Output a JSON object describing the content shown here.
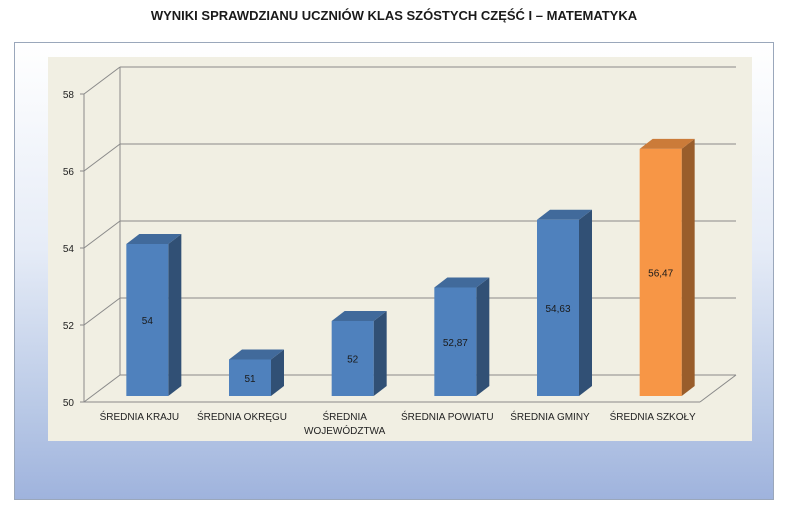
{
  "title": "WYNIKI SPRAWDZIANU UCZNIÓW KLAS SZÓSTYCH CZĘŚĆ I – MATEMATYKA",
  "colors": {
    "bar": "#4f81bd",
    "highlight": "#f79646"
  },
  "chart_data": {
    "type": "bar",
    "title": "WYNIKI SPRAWDZIANU UCZNIÓW KLAS SZÓSTYCH CZĘŚĆ I – MATEMATYKA",
    "categories": [
      [
        "ŚREDNIA KRAJU"
      ],
      [
        "ŚREDNIA OKRĘGU"
      ],
      [
        "ŚREDNIA",
        "WOJEWÓDZTWA"
      ],
      [
        "ŚREDNIA POWIATU"
      ],
      [
        "ŚREDNIA GMINY"
      ],
      [
        "ŚREDNIA  SZKOŁY"
      ]
    ],
    "values": [
      54,
      51,
      52,
      52.87,
      54.63,
      56.47
    ],
    "value_labels": [
      "54",
      "51",
      "52",
      "52,87",
      "54,63",
      "56,47"
    ],
    "highlight_index": 5,
    "ylim": [
      50,
      58
    ],
    "yticks": [
      50,
      52,
      54,
      56,
      58
    ],
    "ytick_labels": [
      "50",
      "52",
      "54",
      "56",
      "58"
    ],
    "xlabel": "",
    "ylabel": "",
    "grid": true,
    "legend": "none"
  }
}
